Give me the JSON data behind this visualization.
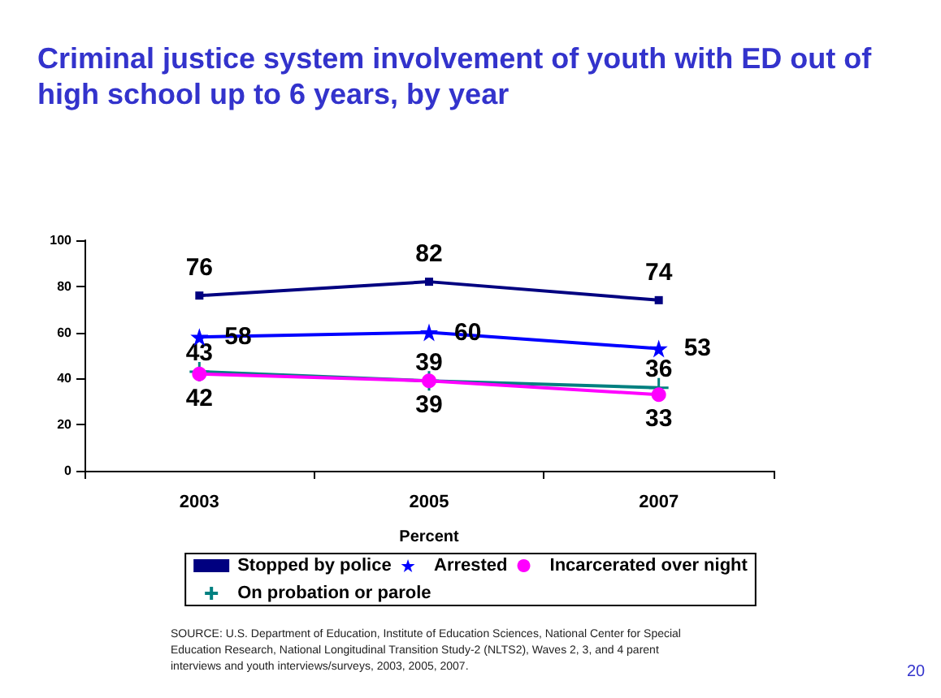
{
  "chart_data": {
    "type": "line",
    "title": "Criminal justice system involvement of youth with ED out of high school up to 6 years, by year",
    "xlabel": "Percent",
    "categories": [
      "2003",
      "2005",
      "2007"
    ],
    "series": [
      {
        "name": "Stopped by police",
        "color": "#000080",
        "marker": "square",
        "values": [
          76,
          82,
          74
        ]
      },
      {
        "name": "Arrested",
        "color": "#0000ff",
        "marker": "star",
        "values": [
          58,
          60,
          53
        ]
      },
      {
        "name": "Incarcerated over night",
        "color": "#ff00ff",
        "marker": "circle",
        "values": [
          42,
          39,
          33
        ]
      },
      {
        "name": "On probation or parole",
        "color": "#008080",
        "marker": "cross",
        "values": [
          43,
          39,
          36
        ]
      }
    ],
    "ylim": [
      0,
      100
    ],
    "yticks": [
      0,
      20,
      40,
      60,
      80,
      100
    ],
    "grid": false,
    "legend": "bottom",
    "data_labels": true,
    "annotations": [
      "SOURCE: U.S. Department of Education, Institute of Education Sciences, National Center for Special Education Research, National Longitudinal Transition Study-2 (NLTS2), Waves 2, 3, and 4 parent interviews and youth interviews/surveys, 2003, 2005, 2007.",
      "20"
    ]
  }
}
